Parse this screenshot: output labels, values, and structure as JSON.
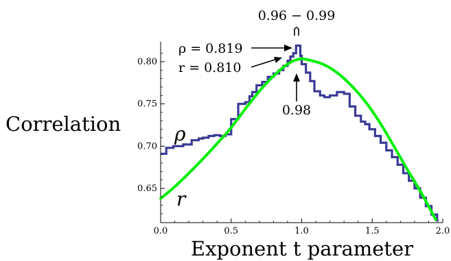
{
  "chart_data": {
    "type": "line",
    "title": "",
    "xlabel": "Exponent t parameter",
    "ylabel": "Correlation",
    "xlim": [
      0.0,
      2.0
    ],
    "ylim": [
      0.612,
      0.822
    ],
    "xticks": [
      "0.0",
      "0.5",
      "1.0",
      "1.5",
      "2.0"
    ],
    "yticks": [
      "0.65",
      "0.70",
      "0.75",
      "0.80"
    ],
    "series": [
      {
        "name": "ρ",
        "kind": "step",
        "color": "#3a3a96",
        "x": [
          0.0,
          0.04,
          0.09,
          0.16,
          0.22,
          0.27,
          0.3,
          0.34,
          0.38,
          0.42,
          0.46,
          0.5,
          0.55,
          0.6,
          0.63,
          0.65,
          0.68,
          0.72,
          0.76,
          0.8,
          0.84,
          0.87,
          0.9,
          0.92,
          0.94,
          0.96,
          0.99,
          1.0,
          1.03,
          1.06,
          1.09,
          1.13,
          1.16,
          1.2,
          1.25,
          1.3,
          1.34,
          1.38,
          1.42,
          1.45,
          1.48,
          1.52,
          1.56,
          1.6,
          1.64,
          1.68,
          1.72,
          1.76,
          1.8,
          1.84,
          1.88,
          1.92,
          1.96
        ],
        "y": [
          0.691,
          0.698,
          0.7,
          0.702,
          0.707,
          0.709,
          0.71,
          0.712,
          0.713,
          0.712,
          0.714,
          0.732,
          0.75,
          0.752,
          0.759,
          0.764,
          0.772,
          0.776,
          0.782,
          0.786,
          0.79,
          0.795,
          0.801,
          0.806,
          0.81,
          0.819,
          0.807,
          0.797,
          0.787,
          0.777,
          0.765,
          0.76,
          0.758,
          0.76,
          0.764,
          0.762,
          0.747,
          0.736,
          0.729,
          0.726,
          0.72,
          0.712,
          0.704,
          0.695,
          0.687,
          0.678,
          0.668,
          0.659,
          0.65,
          0.639,
          0.629,
          0.619,
          0.612
        ]
      },
      {
        "name": "r",
        "kind": "smooth",
        "color": "#00ee00",
        "x": [
          0.0,
          0.1,
          0.2,
          0.3,
          0.4,
          0.5,
          0.6,
          0.7,
          0.8,
          0.9,
          0.98,
          1.05,
          1.15,
          1.25,
          1.35,
          1.45,
          1.55,
          1.65,
          1.75,
          1.85,
          1.95
        ],
        "y": [
          0.638,
          0.652,
          0.668,
          0.685,
          0.703,
          0.722,
          0.744,
          0.765,
          0.783,
          0.797,
          0.803,
          0.802,
          0.797,
          0.787,
          0.772,
          0.753,
          0.729,
          0.701,
          0.672,
          0.644,
          0.613
        ]
      }
    ],
    "annotations": [
      {
        "text": "0.96 − 0.99",
        "target": "bracket at x 0.96–0.99 over the ρ peak"
      },
      {
        "text": "ρ = 0.819",
        "target": "ρ peak"
      },
      {
        "text": "r = 0.810",
        "target": "r maximum"
      },
      {
        "text": "0.98",
        "target": "x of r maximum"
      }
    ],
    "grid": false,
    "legend": "none"
  }
}
